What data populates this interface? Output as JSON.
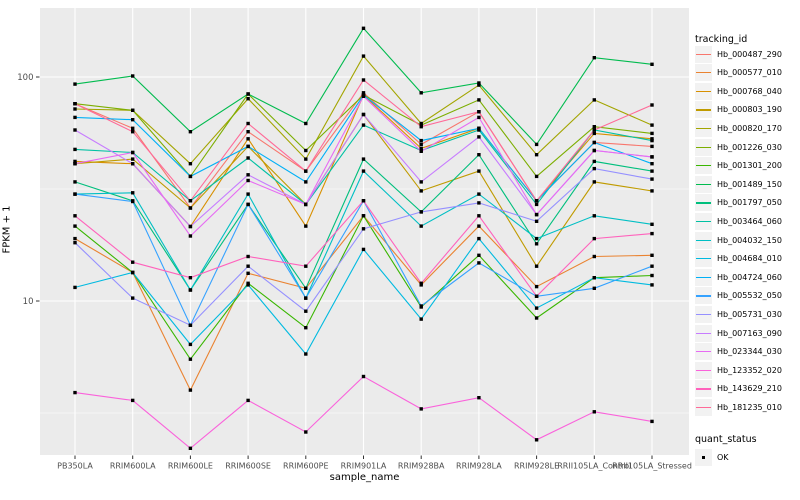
{
  "figure": {
    "x_axis_title": "sample_name",
    "y_axis_title": "FPKM + 1",
    "tracking_legend_title": "tracking_id",
    "quant_legend_title": "quant_status",
    "quant_ok_label": "OK"
  },
  "chart_data": {
    "type": "line",
    "title": "",
    "xlabel": "sample_name",
    "ylabel": "FPKM + 1",
    "x_scale": "categorical",
    "y_scale": "log10",
    "ylim": [
      2.2,
      190
    ],
    "grid": "on",
    "panel_bg": "#EBEBEB",
    "grid_color": "#FFFFFF",
    "axis_text_color": "#4D4D4D",
    "legend_position": "right",
    "marker": {
      "shape": "square",
      "color": "#000000",
      "status_label": "OK"
    },
    "categories": [
      "PB350LA",
      "RRIM600LA",
      "RRIM600LE",
      "RRIM600SE",
      "RRIM600PE",
      "RRIM901LA",
      "RRIM928BA",
      "RRIM928LA",
      "RRIM928LE",
      "RRII105LA_Control",
      "RRII105LA_Stressed"
    ],
    "y_major_ticks": [
      {
        "value": 100,
        "label": "100"
      },
      {
        "value": 10,
        "label": "10"
      }
    ],
    "y_minor_ticks": [
      31.623,
      3.1623
    ],
    "series": [
      {
        "name": "Hb_000487_290",
        "color": "#F8766D",
        "values": [
          76,
          59,
          26,
          57,
          38,
          85,
          50,
          70,
          28,
          51,
          49
        ]
      },
      {
        "name": "Hb_000577_010",
        "color": "#EA8331",
        "values": [
          19,
          13.4,
          4.0,
          13.3,
          11.4,
          24,
          11.8,
          21.6,
          11.6,
          15.8,
          16
        ]
      },
      {
        "name": "Hb_000768_040",
        "color": "#D89000",
        "values": [
          42,
          41,
          21.5,
          53,
          21.6,
          83,
          48,
          59,
          28,
          56,
          53
        ]
      },
      {
        "name": "Hb_000803_190",
        "color": "#C09B00",
        "values": [
          41,
          43,
          26,
          49,
          27,
          68,
          31,
          38,
          14.3,
          34,
          31
        ]
      },
      {
        "name": "Hb_000820_170",
        "color": "#A3A500",
        "values": [
          72,
          71,
          41,
          80,
          43,
          124,
          62,
          92,
          45,
          79,
          61
        ]
      },
      {
        "name": "Hb_001226_030",
        "color": "#7CAE00",
        "values": [
          76,
          71,
          36,
          84,
          47,
          83,
          61,
          79,
          36,
          60,
          56
        ]
      },
      {
        "name": "Hb_001301_200",
        "color": "#39B600",
        "values": [
          21.6,
          13.4,
          5.5,
          12,
          7.6,
          24,
          9.4,
          16,
          8.4,
          12.7,
          13
        ]
      },
      {
        "name": "Hb_001489_150",
        "color": "#00BB4E",
        "values": [
          93,
          101,
          57,
          84,
          62,
          165,
          85,
          94,
          50,
          122,
          114
        ]
      },
      {
        "name": "Hb_001797_050",
        "color": "#00BF7D",
        "values": [
          34,
          28,
          11.2,
          27,
          11.4,
          43,
          25,
          45,
          18,
          42,
          38
        ]
      },
      {
        "name": "Hb_003464_060",
        "color": "#00C1A3",
        "values": [
          47.5,
          46,
          28,
          43.5,
          27,
          61,
          47,
          58,
          27,
          58,
          52
        ]
      },
      {
        "name": "Hb_004032_150",
        "color": "#00BFC4",
        "values": [
          30,
          30.4,
          11.2,
          30,
          10.3,
          38,
          21.6,
          30,
          19,
          24,
          22
        ]
      },
      {
        "name": "Hb_004684_010",
        "color": "#00BAE0",
        "values": [
          11.5,
          13.4,
          6.4,
          11.8,
          5.8,
          17,
          8.3,
          19,
          9.3,
          12.7,
          11.8
        ]
      },
      {
        "name": "Hb_004724_060",
        "color": "#00B0F6",
        "values": [
          66,
          64.5,
          36,
          49,
          34,
          83,
          52,
          59,
          28,
          51,
          41
        ]
      },
      {
        "name": "Hb_005532_050",
        "color": "#35A2FF",
        "values": [
          30,
          27.8,
          7.8,
          27,
          10.3,
          28,
          9.5,
          14.8,
          10.5,
          11.4,
          14.3
        ]
      },
      {
        "name": "Hb_005731_030",
        "color": "#9590FF",
        "values": [
          18.2,
          10.3,
          7.8,
          14.3,
          9.0,
          21,
          25,
          27.4,
          22.7,
          39,
          35
        ]
      },
      {
        "name": "Hb_007163_090",
        "color": "#C77CFF",
        "values": [
          58,
          41,
          21.5,
          36.6,
          27,
          68,
          34,
          54,
          24.3,
          47,
          44
        ]
      },
      {
        "name": "Hb_023344_030",
        "color": "#E76BF3",
        "values": [
          41,
          46,
          19.5,
          34.5,
          27,
          82,
          46.6,
          66,
          24.3,
          47,
          44
        ]
      },
      {
        "name": "Hb_123352_020",
        "color": "#FA62DB",
        "values": [
          3.9,
          3.6,
          2.2,
          3.6,
          2.6,
          4.6,
          3.3,
          3.7,
          2.4,
          3.2,
          2.9
        ]
      },
      {
        "name": "Hb_143629_210",
        "color": "#FF62BC",
        "values": [
          24,
          14.9,
          12.7,
          15.8,
          14.3,
          28,
          12,
          24,
          10.5,
          19,
          20
        ]
      },
      {
        "name": "Hb_181235_010",
        "color": "#FF6A98",
        "values": [
          76,
          57,
          28,
          62,
          38,
          97,
          60,
          70,
          28,
          58,
          75
        ]
      }
    ]
  }
}
